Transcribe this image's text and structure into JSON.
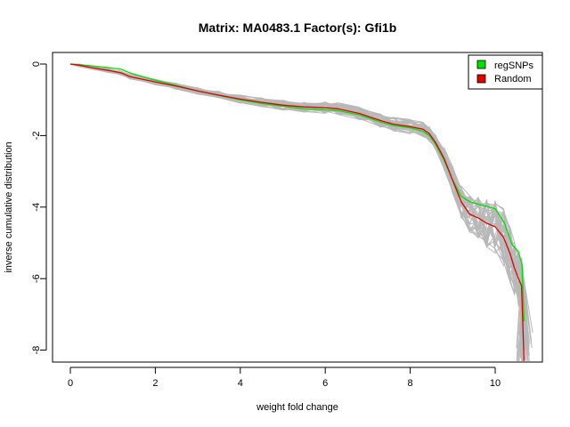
{
  "chart_data": {
    "type": "line",
    "title": "Matrix: MA0483.1 Factor(s): Gfi1b",
    "xlabel": "weight fold change",
    "ylabel": "inverse cumulative distribution",
    "xlim": [
      0,
      11.0
    ],
    "ylim": [
      -8,
      0
    ],
    "x_ticks": [
      0,
      2,
      4,
      6,
      8,
      10
    ],
    "y_ticks": [
      0,
      -2,
      -4,
      -6,
      -8
    ],
    "legend": {
      "placement": "top-right",
      "entries": [
        "regSNPs",
        "Random"
      ]
    },
    "colors": {
      "regSNPs": "#00e000",
      "Random": "#e00000",
      "background": "#b8b8b8"
    },
    "series": [
      {
        "name": "regSNPs",
        "x": [
          0.0,
          0.2,
          0.5,
          0.9,
          1.2,
          1.4,
          2.0,
          2.5,
          3.0,
          3.5,
          4.0,
          4.5,
          5.0,
          5.5,
          6.0,
          6.3,
          6.8,
          7.3,
          7.6,
          8.0,
          8.3,
          8.45,
          8.6,
          8.8,
          9.0,
          9.2,
          9.4,
          9.6,
          9.8,
          10.0,
          10.2,
          10.4,
          10.55,
          10.63,
          10.68
        ],
        "y": [
          0.0,
          -0.02,
          -0.05,
          -0.1,
          -0.15,
          -0.25,
          -0.45,
          -0.6,
          -0.75,
          -0.88,
          -1.0,
          -1.1,
          -1.18,
          -1.25,
          -1.28,
          -1.3,
          -1.42,
          -1.62,
          -1.72,
          -1.78,
          -1.88,
          -2.0,
          -2.25,
          -2.7,
          -3.25,
          -3.7,
          -3.85,
          -3.92,
          -3.98,
          -4.05,
          -4.4,
          -5.05,
          -5.25,
          -5.6,
          -7.2
        ]
      },
      {
        "name": "Random",
        "x": [
          0.0,
          0.2,
          0.5,
          0.9,
          1.2,
          1.4,
          2.0,
          2.5,
          3.0,
          3.5,
          4.0,
          4.5,
          5.0,
          5.5,
          6.0,
          6.3,
          6.8,
          7.3,
          7.6,
          8.0,
          8.3,
          8.45,
          8.6,
          8.8,
          9.0,
          9.2,
          9.4,
          9.6,
          9.8,
          10.0,
          10.2,
          10.35,
          10.45,
          10.55,
          10.62,
          10.68
        ],
        "y": [
          0.0,
          -0.03,
          -0.1,
          -0.18,
          -0.25,
          -0.35,
          -0.5,
          -0.62,
          -0.75,
          -0.87,
          -0.98,
          -1.07,
          -1.15,
          -1.2,
          -1.22,
          -1.25,
          -1.38,
          -1.58,
          -1.68,
          -1.75,
          -1.82,
          -1.95,
          -2.2,
          -2.65,
          -3.25,
          -3.85,
          -4.2,
          -4.3,
          -4.45,
          -4.55,
          -4.85,
          -5.3,
          -5.7,
          -6.0,
          -6.2,
          -8.3
        ]
      }
    ]
  }
}
